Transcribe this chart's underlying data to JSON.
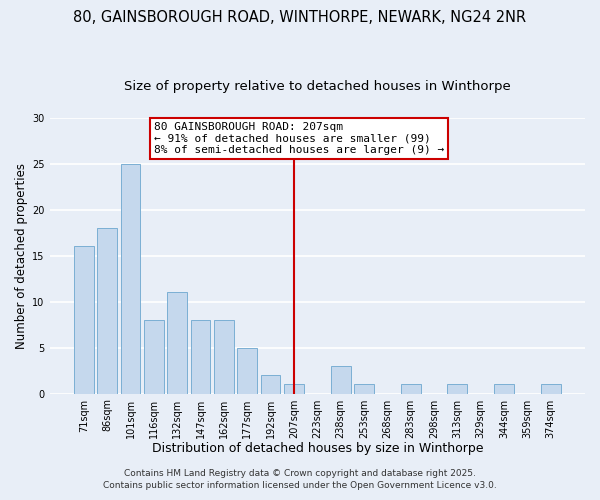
{
  "title1": "80, GAINSBOROUGH ROAD, WINTHORPE, NEWARK, NG24 2NR",
  "title2": "Size of property relative to detached houses in Winthorpe",
  "xlabel": "Distribution of detached houses by size in Winthorpe",
  "ylabel": "Number of detached properties",
  "bar_labels": [
    "71sqm",
    "86sqm",
    "101sqm",
    "116sqm",
    "132sqm",
    "147sqm",
    "162sqm",
    "177sqm",
    "192sqm",
    "207sqm",
    "223sqm",
    "238sqm",
    "253sqm",
    "268sqm",
    "283sqm",
    "298sqm",
    "313sqm",
    "329sqm",
    "344sqm",
    "359sqm",
    "374sqm"
  ],
  "bar_values": [
    16,
    18,
    25,
    8,
    11,
    8,
    8,
    5,
    2,
    1,
    0,
    3,
    1,
    0,
    1,
    0,
    1,
    0,
    1,
    0,
    1
  ],
  "bar_color": "#c5d8ed",
  "bar_edge_color": "#7bafd4",
  "vline_x": 9,
  "vline_color": "#cc0000",
  "annotation_line1": "80 GAINSBOROUGH ROAD: 207sqm",
  "annotation_line2": "← 91% of detached houses are smaller (99)",
  "annotation_line3": "8% of semi-detached houses are larger (9) →",
  "annotation_box_color": "#ffffff",
  "annotation_box_edge": "#cc0000",
  "ylim": [
    0,
    30
  ],
  "yticks": [
    0,
    5,
    10,
    15,
    20,
    25,
    30
  ],
  "footer1": "Contains HM Land Registry data © Crown copyright and database right 2025.",
  "footer2": "Contains public sector information licensed under the Open Government Licence v3.0.",
  "bg_color": "#e8eef7",
  "plot_bg_color": "#e8eef7",
  "grid_color": "#ffffff",
  "title1_fontsize": 10.5,
  "title2_fontsize": 9.5,
  "xlabel_fontsize": 9,
  "ylabel_fontsize": 8.5,
  "tick_fontsize": 7,
  "footer_fontsize": 6.5,
  "annotation_fontsize": 8
}
